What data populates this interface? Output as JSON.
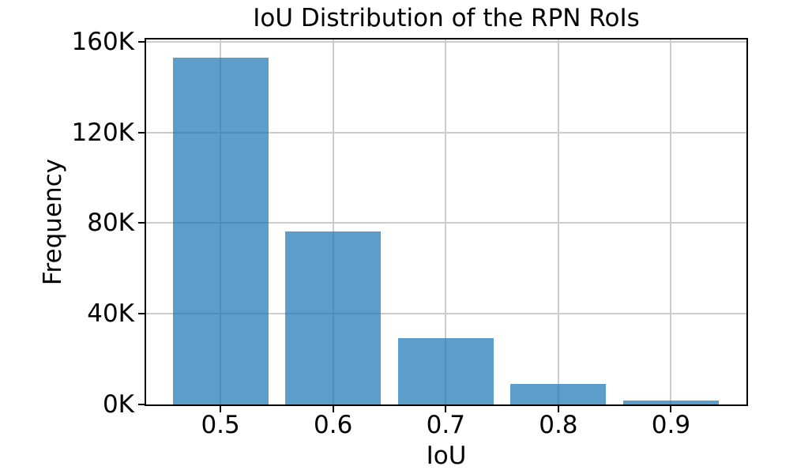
{
  "chart_data": {
    "type": "bar",
    "title": "IoU Distribution of the RPN RoIs",
    "xlabel": "IoU",
    "ylabel": "Frequency",
    "categories": [
      0.5,
      0.6,
      0.7,
      0.8,
      0.9
    ],
    "values": [
      153000,
      76300,
      29300,
      9100,
      1700
    ],
    "x_tick_labels": [
      "0.5",
      "0.6",
      "0.7",
      "0.8",
      "0.9"
    ],
    "y_ticks": [
      0,
      40000,
      80000,
      120000,
      160000
    ],
    "y_tick_labels": [
      "0K",
      "40K",
      "80K",
      "120K",
      "160K"
    ],
    "xlim": [
      0.434,
      0.967
    ],
    "ylim": [
      0,
      161000
    ],
    "bar_width": 0.085,
    "bar_color": "#1f77b4",
    "bar_alpha": 0.72,
    "grid": true,
    "grid_color": "#cccccc",
    "spine_color": "#000000",
    "legend": "none"
  }
}
